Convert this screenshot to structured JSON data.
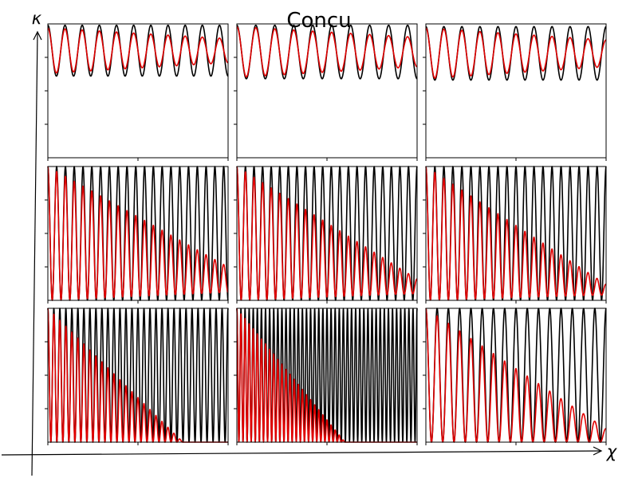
{
  "figure": {
    "title": "Concu",
    "y_axis_label": "κ",
    "x_axis_label": "χ"
  },
  "colors": {
    "series_black": "#000000",
    "series_red": "#e00000",
    "frame": "#000000",
    "background": "#ffffff"
  },
  "chart_data": [
    {
      "type": "line",
      "row": 1,
      "col": 1,
      "xlim": [
        0,
        1
      ],
      "ylim": [
        0,
        1
      ],
      "series": [
        {
          "color": "#000000",
          "cycles": 10.5,
          "baseline": 0.8,
          "amplitude": [
            0.19,
            0.19
          ],
          "shape": "sine"
        },
        {
          "color": "#e00000",
          "cycles": 10.5,
          "baseline": 0.8,
          "amplitude": [
            0.17,
            0.09
          ],
          "shape": "sine"
        }
      ]
    },
    {
      "type": "line",
      "row": 1,
      "col": 2,
      "xlim": [
        0,
        1
      ],
      "ylim": [
        0,
        1
      ],
      "series": [
        {
          "color": "#000000",
          "cycles": 9.5,
          "baseline": 0.79,
          "amplitude": [
            0.2,
            0.2
          ],
          "shape": "sine"
        },
        {
          "color": "#e00000",
          "cycles": 9.5,
          "baseline": 0.79,
          "amplitude": [
            0.19,
            0.11
          ],
          "shape": "sine"
        }
      ]
    },
    {
      "type": "line",
      "row": 1,
      "col": 3,
      "xlim": [
        0,
        1
      ],
      "ylim": [
        0,
        1
      ],
      "series": [
        {
          "color": "#000000",
          "cycles": 10,
          "baseline": 0.78,
          "amplitude": [
            0.2,
            0.2
          ],
          "shape": "sine"
        },
        {
          "color": "#e00000",
          "cycles": 10,
          "baseline": 0.78,
          "amplitude": [
            0.19,
            0.1
          ],
          "shape": "sine"
        }
      ]
    },
    {
      "type": "line",
      "row": 2,
      "col": 1,
      "xlim": [
        0,
        1
      ],
      "ylim": [
        0,
        1
      ],
      "series": [
        {
          "color": "#000000",
          "cycles": 20.5,
          "baseline": 0.5,
          "amplitude": [
            0.5,
            0.5
          ],
          "shape": "cos2"
        },
        {
          "color": "#e00000",
          "cycles": 20.5,
          "peak_start": 1.0,
          "peak_end": 0.25,
          "floor_start": 0.0,
          "floor_end": 0.06,
          "shape": "cos2"
        }
      ]
    },
    {
      "type": "line",
      "row": 2,
      "col": 2,
      "xlim": [
        0,
        1
      ],
      "ylim": [
        0,
        1
      ],
      "series": [
        {
          "color": "#000000",
          "cycles": 21,
          "baseline": 0.5,
          "amplitude": [
            0.5,
            0.5
          ],
          "shape": "cos2"
        },
        {
          "color": "#e00000",
          "cycles": 21,
          "peak_start": 1.0,
          "peak_end": 0.16,
          "floor_start": 0.0,
          "floor_end": 0.05,
          "shape": "cos2"
        }
      ]
    },
    {
      "type": "line",
      "row": 2,
      "col": 3,
      "xlim": [
        0,
        1
      ],
      "ylim": [
        0,
        1
      ],
      "series": [
        {
          "color": "#000000",
          "cycles": 20,
          "baseline": 0.5,
          "amplitude": [
            0.5,
            0.5
          ],
          "shape": "cos2"
        },
        {
          "color": "#e00000",
          "cycles": 20,
          "peak_start": 1.0,
          "peak_end": 0.12,
          "floor_start": 0.0,
          "floor_end": 0.04,
          "shape": "cos2"
        }
      ]
    },
    {
      "type": "line",
      "row": 3,
      "col": 1,
      "xlim": [
        0,
        1
      ],
      "ylim": [
        0,
        1
      ],
      "series": [
        {
          "color": "#000000",
          "cycles": 30,
          "baseline": 0.5,
          "amplitude": [
            0.5,
            0.5
          ],
          "shape": "cos2"
        },
        {
          "color": "#e00000",
          "cycles": 30,
          "peak_start": 1.0,
          "peak_end": 0.0,
          "floor_start": 0.0,
          "floor_end": 0.0,
          "decay_end": 0.75,
          "shape": "cos2"
        }
      ]
    },
    {
      "type": "line",
      "row": 3,
      "col": 2,
      "xlim": [
        0,
        1
      ],
      "ylim": [
        0,
        1
      ],
      "series": [
        {
          "color": "#000000",
          "cycles": 44,
          "baseline": 0.5,
          "amplitude": [
            0.5,
            0.5
          ],
          "shape": "cos2"
        },
        {
          "color": "#e00000",
          "cycles": 44,
          "peak_start": 1.0,
          "peak_end": 0.0,
          "floor_start": 0.0,
          "floor_end": 0.0,
          "decay_end": 0.6,
          "shape": "cos2"
        }
      ]
    },
    {
      "type": "line",
      "row": 3,
      "col": 3,
      "xlim": [
        0,
        1
      ],
      "ylim": [
        0,
        1
      ],
      "series": [
        {
          "color": "#000000",
          "cycles": 16,
          "baseline": 0.5,
          "amplitude": [
            0.5,
            0.5
          ],
          "shape": "cos2"
        },
        {
          "color": "#e00000",
          "cycles": 16,
          "peak_start": 1.0,
          "peak_end": 0.1,
          "floor_start": 0.0,
          "floor_end": 0.0,
          "shape": "cos2"
        }
      ]
    }
  ]
}
